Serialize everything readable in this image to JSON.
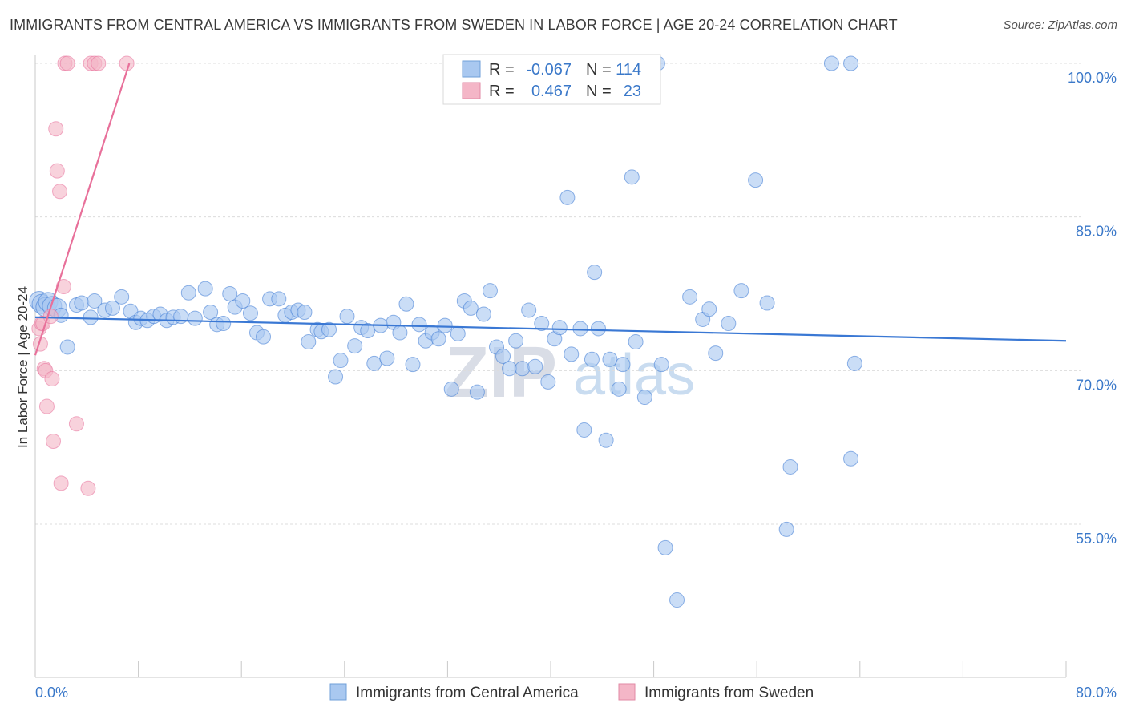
{
  "title": "IMMIGRANTS FROM CENTRAL AMERICA VS IMMIGRANTS FROM SWEDEN IN LABOR FORCE | AGE 20-24 CORRELATION CHART",
  "source": "Source: ZipAtlas.com",
  "watermark": {
    "zip": "ZIP",
    "atlas": "atlas"
  },
  "legend_top": {
    "rows": [
      {
        "r_label": "R =",
        "r_value": "-0.067",
        "n_label": "N =",
        "n_value": "114",
        "color": "#a9c8f0"
      },
      {
        "r_label": "R =",
        "r_value": "0.467",
        "n_label": "N =",
        "n_value": "23",
        "color": "#f4b6c7"
      }
    ]
  },
  "legend_bottom": [
    {
      "label": "Immigrants from Central America",
      "color": "#a9c8f0"
    },
    {
      "label": "Immigrants from Sweden",
      "color": "#f4b6c7"
    }
  ],
  "chart_data": {
    "type": "scatter",
    "ylabel": "In Labor Force | Age 20-24",
    "xlim": [
      0,
      80
    ],
    "ylim": [
      40,
      101.5
    ],
    "y_ticks": [
      {
        "value": 100,
        "label": "100.0%"
      },
      {
        "value": 85,
        "label": "85.0%"
      },
      {
        "value": 70,
        "label": "70.0%"
      },
      {
        "value": 55,
        "label": "55.0%"
      }
    ],
    "x_tick_labels": [
      {
        "value": 0,
        "label": "0.0%"
      },
      {
        "value": 80,
        "label": "80.0%"
      }
    ],
    "grid": true,
    "series": [
      {
        "name": "Immigrants from Central America",
        "color": "#3a78d4",
        "fill": "#a9c8f0",
        "trend": {
          "x0": 0,
          "y0": 75.2,
          "x1": 80,
          "y1": 72.9
        },
        "points": [
          [
            0.3,
            76.8
          ],
          [
            0.5,
            76.5
          ],
          [
            0.8,
            76.2
          ],
          [
            1.0,
            76.7
          ],
          [
            1.3,
            76.3
          ],
          [
            1.7,
            76.1
          ],
          [
            2.0,
            75.4
          ],
          [
            2.5,
            72.3
          ],
          [
            3.2,
            76.4
          ],
          [
            3.6,
            76.6
          ],
          [
            4.3,
            75.2
          ],
          [
            4.6,
            76.8
          ],
          [
            5.4,
            75.9
          ],
          [
            6.0,
            76.1
          ],
          [
            6.7,
            77.2
          ],
          [
            7.4,
            75.8
          ],
          [
            7.8,
            74.7
          ],
          [
            8.2,
            75.1
          ],
          [
            8.7,
            74.9
          ],
          [
            9.2,
            75.3
          ],
          [
            9.7,
            75.5
          ],
          [
            10.2,
            74.9
          ],
          [
            10.7,
            75.2
          ],
          [
            11.3,
            75.3
          ],
          [
            11.9,
            77.6
          ],
          [
            12.4,
            75.1
          ],
          [
            13.2,
            78.0
          ],
          [
            13.6,
            75.7
          ],
          [
            14.1,
            74.5
          ],
          [
            14.6,
            74.6
          ],
          [
            15.1,
            77.5
          ],
          [
            15.5,
            76.2
          ],
          [
            16.1,
            76.8
          ],
          [
            16.7,
            75.6
          ],
          [
            17.2,
            73.7
          ],
          [
            17.7,
            73.3
          ],
          [
            18.2,
            77.0
          ],
          [
            18.9,
            77.0
          ],
          [
            19.4,
            75.4
          ],
          [
            19.9,
            75.7
          ],
          [
            20.4,
            75.9
          ],
          [
            20.9,
            75.7
          ],
          [
            21.2,
            72.8
          ],
          [
            21.9,
            74.0
          ],
          [
            22.2,
            73.8
          ],
          [
            22.8,
            74.0
          ],
          [
            23.3,
            69.4
          ],
          [
            23.7,
            71.0
          ],
          [
            24.2,
            75.3
          ],
          [
            24.8,
            72.4
          ],
          [
            25.3,
            74.2
          ],
          [
            25.8,
            73.9
          ],
          [
            26.3,
            70.7
          ],
          [
            26.8,
            74.4
          ],
          [
            27.3,
            71.2
          ],
          [
            27.8,
            74.7
          ],
          [
            28.3,
            73.7
          ],
          [
            28.8,
            76.5
          ],
          [
            29.3,
            70.6
          ],
          [
            29.8,
            74.5
          ],
          [
            30.3,
            72.9
          ],
          [
            30.8,
            73.7
          ],
          [
            31.3,
            73.1
          ],
          [
            31.8,
            74.4
          ],
          [
            32.3,
            68.2
          ],
          [
            32.8,
            73.6
          ],
          [
            33.3,
            76.8
          ],
          [
            33.8,
            76.1
          ],
          [
            34.3,
            67.9
          ],
          [
            34.8,
            75.5
          ],
          [
            35.3,
            77.8
          ],
          [
            35.8,
            72.3
          ],
          [
            36.3,
            71.4
          ],
          [
            36.8,
            70.2
          ],
          [
            37.3,
            72.9
          ],
          [
            37.8,
            70.2
          ],
          [
            38.3,
            75.9
          ],
          [
            38.8,
            70.4
          ],
          [
            39.3,
            74.6
          ],
          [
            39.8,
            68.9
          ],
          [
            40.3,
            73.1
          ],
          [
            40.7,
            74.2
          ],
          [
            41.3,
            86.9
          ],
          [
            41.6,
            71.6
          ],
          [
            42.3,
            74.1
          ],
          [
            42.6,
            64.2
          ],
          [
            43.2,
            71.1
          ],
          [
            43.4,
            79.6
          ],
          [
            43.7,
            74.1
          ],
          [
            44.3,
            63.2
          ],
          [
            44.6,
            71.1
          ],
          [
            45.3,
            68.2
          ],
          [
            45.6,
            70.6
          ],
          [
            46.3,
            88.9
          ],
          [
            46.6,
            72.8
          ],
          [
            47.3,
            67.4
          ],
          [
            48.3,
            100.0
          ],
          [
            48.6,
            70.6
          ],
          [
            48.9,
            52.7
          ],
          [
            49.8,
            47.6
          ],
          [
            50.8,
            77.2
          ],
          [
            51.8,
            75.0
          ],
          [
            52.3,
            76.0
          ],
          [
            52.8,
            71.7
          ],
          [
            53.8,
            74.6
          ],
          [
            54.8,
            77.8
          ],
          [
            55.9,
            88.6
          ],
          [
            56.8,
            76.6
          ],
          [
            58.3,
            54.5
          ],
          [
            58.6,
            60.6
          ],
          [
            61.8,
            100.0
          ],
          [
            63.3,
            100.0
          ],
          [
            63.6,
            70.7
          ],
          [
            63.3,
            61.4
          ]
        ]
      },
      {
        "name": "Immigrants from Sweden",
        "color": "#e8709a",
        "fill": "#f4b6c7",
        "trend": {
          "x0": 0,
          "y0": 71.5,
          "x1": 7.3,
          "y1": 100.0
        },
        "points": [
          [
            0.3,
            74.1
          ],
          [
            0.4,
            72.6
          ],
          [
            0.5,
            74.6
          ],
          [
            0.6,
            74.6
          ],
          [
            0.7,
            70.2
          ],
          [
            0.8,
            70.0
          ],
          [
            0.9,
            66.5
          ],
          [
            1.2,
            75.3
          ],
          [
            1.3,
            69.2
          ],
          [
            1.4,
            63.1
          ],
          [
            1.6,
            93.6
          ],
          [
            1.7,
            89.5
          ],
          [
            1.9,
            87.5
          ],
          [
            2.0,
            59.0
          ],
          [
            2.2,
            78.2
          ],
          [
            2.3,
            100.0
          ],
          [
            2.5,
            100.0
          ],
          [
            3.2,
            64.8
          ],
          [
            4.1,
            58.5
          ],
          [
            4.3,
            100.0
          ],
          [
            4.6,
            100.0
          ],
          [
            4.9,
            100.0
          ],
          [
            7.1,
            100.0
          ]
        ]
      }
    ]
  }
}
